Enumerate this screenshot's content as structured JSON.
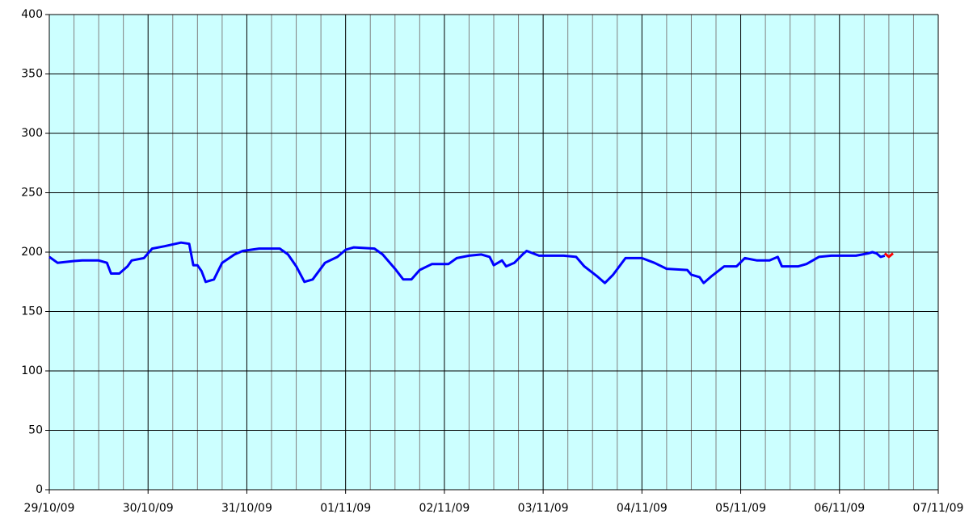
{
  "chart_data": {
    "type": "line",
    "xlim": [
      "2009-10-29T00:00",
      "2009-11-07T00:00"
    ],
    "xticks": [
      {
        "value": "2009-10-29T00:00",
        "label": "29/10/09"
      },
      {
        "value": "2009-10-30T00:00",
        "label": "30/10/09"
      },
      {
        "value": "2009-10-31T00:00",
        "label": "31/10/09"
      },
      {
        "value": "2009-11-01T00:00",
        "label": "01/11/09"
      },
      {
        "value": "2009-11-02T00:00",
        "label": "02/11/09"
      },
      {
        "value": "2009-11-03T00:00",
        "label": "03/11/09"
      },
      {
        "value": "2009-11-04T00:00",
        "label": "04/11/09"
      },
      {
        "value": "2009-11-05T00:00",
        "label": "05/11/09"
      },
      {
        "value": "2009-11-06T00:00",
        "label": "06/11/09"
      },
      {
        "value": "2009-11-07T00:00",
        "label": "07/11/09"
      }
    ],
    "ylim": [
      0,
      400
    ],
    "yticks": [
      0,
      50,
      100,
      150,
      200,
      250,
      300,
      350,
      400
    ],
    "grid": true,
    "background": "#ccffff",
    "series": [
      {
        "color": "#0000ff",
        "x": [
          "2009-10-29T00:00",
          "2009-10-29T02:00",
          "2009-10-29T06:00",
          "2009-10-29T08:00",
          "2009-10-29T12:00",
          "2009-10-29T14:00",
          "2009-10-29T15:00",
          "2009-10-29T17:00",
          "2009-10-29T19:00",
          "2009-10-29T20:00",
          "2009-10-29T23:00",
          "2009-10-30T01:00",
          "2009-10-30T04:00",
          "2009-10-30T08:00",
          "2009-10-30T10:00",
          "2009-10-30T11:00",
          "2009-10-30T12:00",
          "2009-10-30T13:00",
          "2009-10-30T14:00",
          "2009-10-30T16:00",
          "2009-10-30T18:00",
          "2009-10-30T21:00",
          "2009-10-30T23:00",
          "2009-10-31T03:00",
          "2009-10-31T08:00",
          "2009-10-31T10:00",
          "2009-10-31T12:00",
          "2009-10-31T14:00",
          "2009-10-31T16:00",
          "2009-10-31T19:00",
          "2009-10-31T22:00",
          "2009-11-01T00:00",
          "2009-11-01T02:00",
          "2009-11-01T07:00",
          "2009-11-01T09:00",
          "2009-11-01T12:00",
          "2009-11-01T14:00",
          "2009-11-01T16:00",
          "2009-11-01T18:00",
          "2009-11-01T21:00",
          "2009-11-02T01:00",
          "2009-11-02T03:00",
          "2009-11-02T06:00",
          "2009-11-02T09:00",
          "2009-11-02T11:00",
          "2009-11-02T12:00",
          "2009-11-02T14:00",
          "2009-11-02T15:00",
          "2009-11-02T17:00",
          "2009-11-02T19:00",
          "2009-11-02T20:00",
          "2009-11-02T23:00",
          "2009-11-03T05:00",
          "2009-11-03T08:00",
          "2009-11-03T10:00",
          "2009-11-03T13:00",
          "2009-11-03T15:00",
          "2009-11-03T17:00",
          "2009-11-03T20:00",
          "2009-11-04T00:00",
          "2009-11-04T03:00",
          "2009-11-04T06:00",
          "2009-11-04T11:00",
          "2009-11-04T12:00",
          "2009-11-04T14:00",
          "2009-11-04T15:00",
          "2009-11-04T17:00",
          "2009-11-04T20:00",
          "2009-11-04T23:00",
          "2009-11-05T01:00",
          "2009-11-05T04:00",
          "2009-11-05T07:00",
          "2009-11-05T09:00",
          "2009-11-05T10:00",
          "2009-11-05T14:00",
          "2009-11-05T16:00",
          "2009-11-05T19:00",
          "2009-11-05T22:00",
          "2009-11-06T04:00",
          "2009-11-06T07:00",
          "2009-11-06T08:00",
          "2009-11-06T09:00",
          "2009-11-06T10:00",
          "2009-11-06T11:00"
        ],
        "values": [
          196,
          191,
          192.5,
          193,
          193,
          191,
          182,
          182,
          188,
          193,
          195,
          203,
          205,
          208,
          207,
          189,
          189,
          184,
          175,
          177,
          191,
          198,
          201,
          203,
          203,
          198,
          188,
          175,
          177,
          191,
          196,
          202,
          204,
          203,
          198,
          186,
          177,
          177,
          185,
          190,
          190,
          195,
          197,
          198,
          196,
          189,
          193,
          188,
          191,
          198,
          201,
          197,
          197,
          196,
          188,
          180,
          174,
          181,
          195,
          195,
          191,
          186,
          185,
          181,
          179,
          174,
          180,
          188,
          188,
          195,
          193,
          193,
          196,
          188,
          188,
          190,
          196,
          197,
          197,
          199,
          200,
          199,
          196,
          197
        ]
      },
      {
        "color": "#ff0000",
        "x": [
          "2009-11-06T11:00",
          "2009-11-06T12:00",
          "2009-11-06T13:00"
        ],
        "values": [
          199,
          196,
          199
        ]
      }
    ]
  }
}
